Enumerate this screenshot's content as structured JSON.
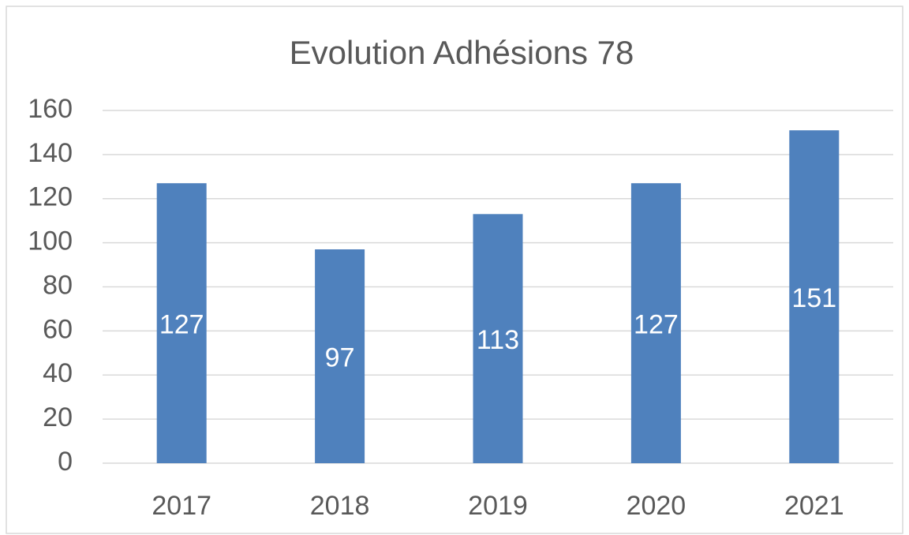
{
  "chart_data": {
    "type": "bar",
    "title": "Evolution Adhésions 78",
    "categories": [
      "2017",
      "2018",
      "2019",
      "2020",
      "2021"
    ],
    "values": [
      127,
      97,
      113,
      127,
      151
    ],
    "color": "#4f81bd",
    "ylim": [
      0,
      160
    ],
    "yticks": [
      0,
      20,
      40,
      60,
      80,
      100,
      120,
      140,
      160
    ],
    "grid": true
  }
}
